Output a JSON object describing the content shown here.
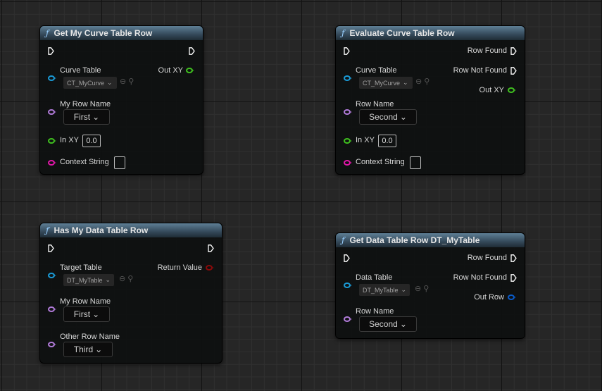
{
  "nodes": [
    {
      "title": "Get My Curve Table Row",
      "pins": {
        "table_label": "Curve Table",
        "table_value": "CT_MyCurve",
        "row_label": "My Row Name",
        "row_value": "First",
        "in_xy_label": "In XY",
        "in_xy_value": "0.0",
        "context_label": "Context String",
        "out": "Out XY"
      }
    },
    {
      "title": "Evaluate Curve Table Row",
      "pins": {
        "table_label": "Curve Table",
        "table_value": "CT_MyCurve",
        "row_label": "Row Name",
        "row_value": "Second",
        "in_xy_label": "In XY",
        "in_xy_value": "0.0",
        "context_label": "Context String",
        "row_found": "Row Found",
        "row_not_found": "Row Not Found",
        "out": "Out XY"
      }
    },
    {
      "title": "Has My Data Table Row",
      "pins": {
        "table_label": "Target Table",
        "table_value": "DT_MyTable",
        "row_label": "My Row Name",
        "row_value": "First",
        "other_label": "Other Row Name",
        "other_value": "Third",
        "out": "Return Value"
      }
    },
    {
      "title": "Get Data Table Row DT_MyTable",
      "pins": {
        "table_label": "Data Table",
        "table_value": "DT_MyTable",
        "row_label": "Row Name",
        "row_value": "Second",
        "row_found": "Row Found",
        "row_not_found": "Row Not Found",
        "out": "Out Row"
      }
    }
  ],
  "function_icon": "ƒ",
  "colors": {
    "object_pin": "#1a9ad6",
    "name_pin": "#b07ad8",
    "vector2d_pin": "#3fbf1f",
    "string_pin": "#e016a8",
    "bool_pin": "#8a0a0a",
    "struct_pin": "#0a5ac8",
    "exec_pin": "#ffffff"
  }
}
